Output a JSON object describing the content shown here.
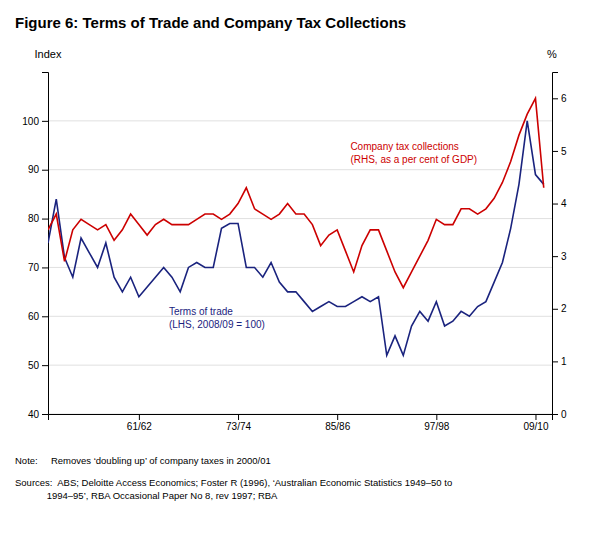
{
  "chart_data": {
    "type": "line",
    "title": "Figure 6: Terms of Trade and Company Tax Collections",
    "ylabel": "Index",
    "y2label": "%",
    "x": [
      1950,
      1951,
      1952,
      1953,
      1954,
      1955,
      1956,
      1957,
      1958,
      1959,
      1960,
      1961,
      1962,
      1963,
      1964,
      1965,
      1966,
      1967,
      1968,
      1969,
      1970,
      1971,
      1972,
      1973,
      1974,
      1975,
      1976,
      1977,
      1978,
      1979,
      1980,
      1981,
      1982,
      1983,
      1984,
      1985,
      1986,
      1987,
      1988,
      1989,
      1990,
      1991,
      1992,
      1993,
      1994,
      1995,
      1996,
      1997,
      1998,
      1999,
      2000,
      2001,
      2002,
      2003,
      2004,
      2005,
      2006,
      2007,
      2008,
      2009,
      2010
    ],
    "xlim": [
      1950,
      2011
    ],
    "xticks": [
      {
        "value": 1961,
        "label": "61/62"
      },
      {
        "value": 1973,
        "label": "73/74"
      },
      {
        "value": 1985,
        "label": "85/86"
      },
      {
        "value": 1997,
        "label": "97/98"
      },
      {
        "value": 2009,
        "label": "09/10"
      }
    ],
    "ylim": [
      40,
      110
    ],
    "yticks": [
      40,
      50,
      60,
      70,
      80,
      90,
      100
    ],
    "y2lim": [
      0,
      6.5
    ],
    "y2ticks": [
      0,
      1,
      2,
      3,
      4,
      5,
      6
    ],
    "grid": true,
    "series": [
      {
        "color": "#1a237e",
        "values": [
          75,
          84,
          72,
          68,
          76,
          73,
          70,
          75,
          68,
          65,
          68,
          64,
          66,
          68,
          70,
          68,
          65,
          70,
          71,
          70,
          70,
          78,
          79,
          79,
          70,
          70,
          68,
          71,
          67,
          65,
          65,
          63,
          61,
          62,
          63,
          62,
          62,
          63,
          64,
          63,
          64,
          52,
          56,
          52,
          58,
          61,
          59,
          63,
          58,
          59,
          61,
          60,
          62,
          63,
          67,
          71,
          78,
          87,
          100,
          89,
          87
        ]
      },
      {
        "color": "#cc0000",
        "axis": "y2",
        "values": [
          3.5,
          3.8,
          2.9,
          3.5,
          3.7,
          3.6,
          3.5,
          3.6,
          3.3,
          3.5,
          3.8,
          3.6,
          3.4,
          3.6,
          3.7,
          3.6,
          3.6,
          3.6,
          3.7,
          3.8,
          3.8,
          3.7,
          3.8,
          4.0,
          4.3,
          3.9,
          3.8,
          3.7,
          3.8,
          4.0,
          3.8,
          3.8,
          3.6,
          3.2,
          3.4,
          3.5,
          3.1,
          2.7,
          3.2,
          3.5,
          3.5,
          3.1,
          2.7,
          2.4,
          2.7,
          3.0,
          3.3,
          3.7,
          3.6,
          3.6,
          3.9,
          3.9,
          3.8,
          3.9,
          4.1,
          4.4,
          4.8,
          5.3,
          5.7,
          6.0,
          4.3
        ]
      }
    ],
    "annotations": [
      {
        "text": "Company tax collections\n(RHS, as a per cent of GDP)",
        "color": "#cc0000"
      },
      {
        "text": "Terms of trade\n(LHS, 2008/09 = 100)",
        "color": "#1a237e"
      }
    ],
    "note": "Note:     Removes ‘doubling up’ of company taxes in 2000/01",
    "sources": "Sources:  ABS; Deloitte Access Economics; Foster R (1996), ‘Australian Economic Statistics 1949–50 to\n            1994–95’, RBA Occasional Paper No 8, rev 1997; RBA"
  }
}
